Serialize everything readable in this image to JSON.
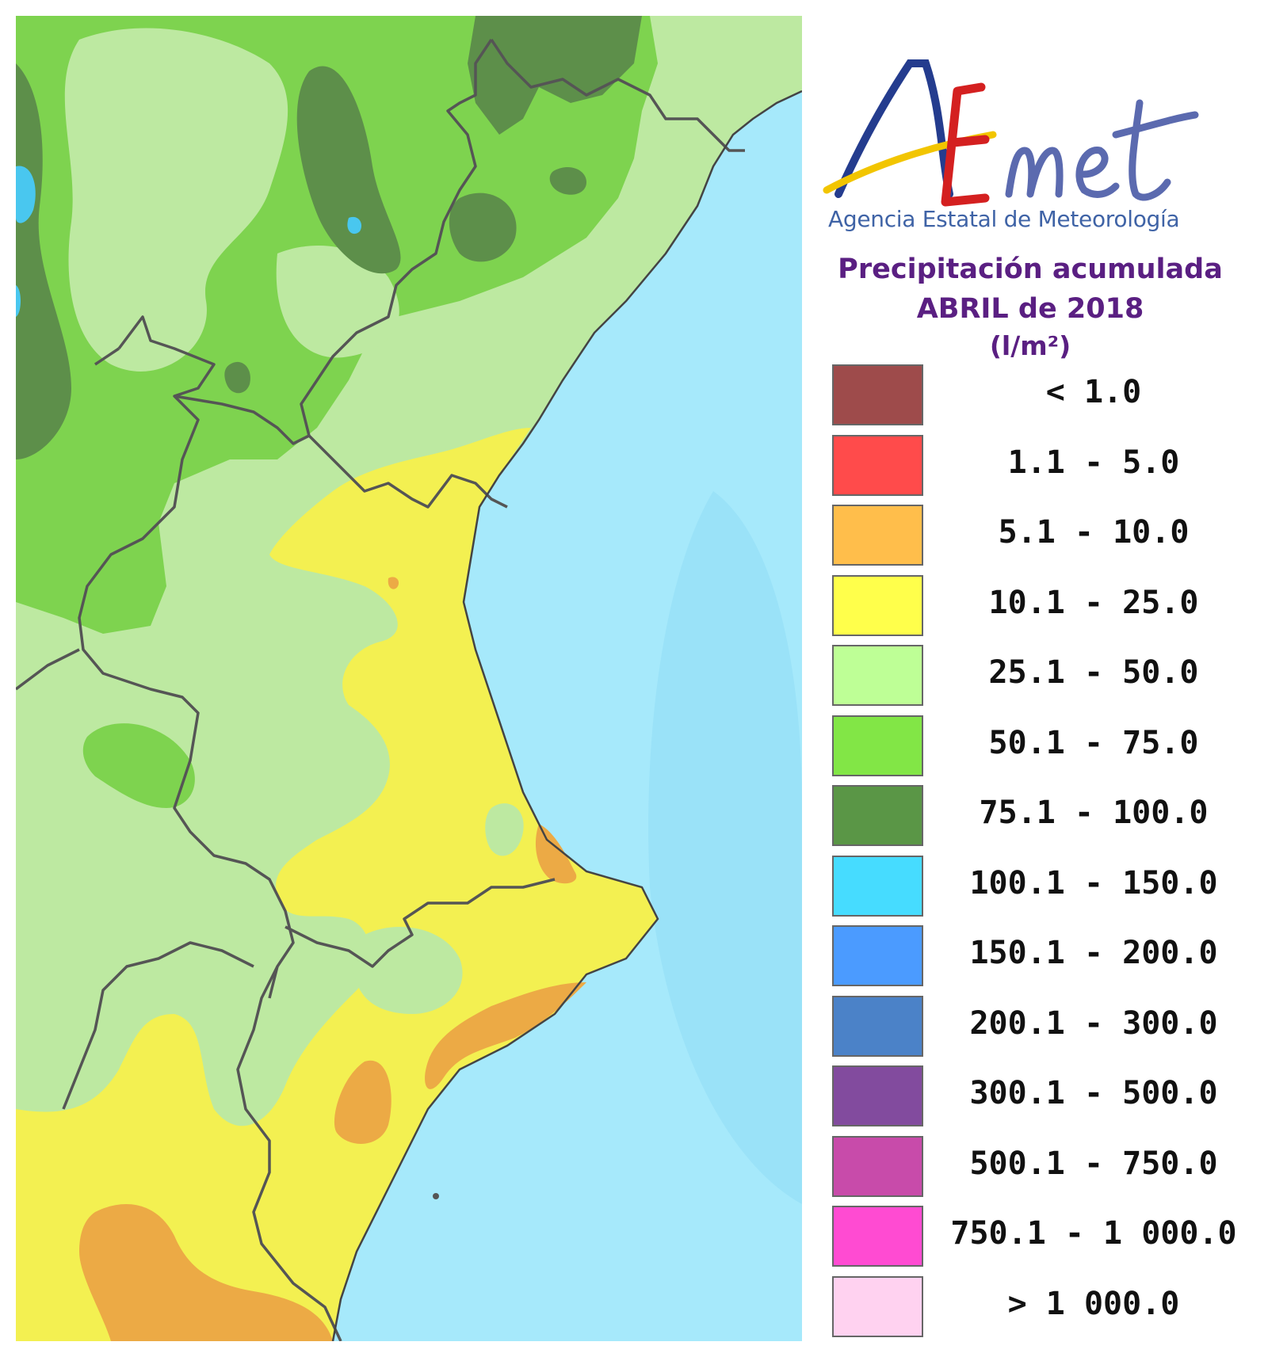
{
  "logo": {
    "wordmark": "AEmet",
    "subtitle": "Agencia Estatal de Meteorología"
  },
  "title": {
    "line1": "Precipitación acumulada",
    "line2": "ABRIL de 2018",
    "units": "(l/m²)"
  },
  "legend": [
    {
      "label": "< 1.0",
      "color": "#9e4b4b"
    },
    {
      "label": "1.1 - 5.0",
      "color": "#ff4b4b"
    },
    {
      "label": "5.1 - 10.0",
      "color": "#ffbe4b"
    },
    {
      "label": "10.1 - 25.0",
      "color": "#ffff4b"
    },
    {
      "label": "25.1 - 50.0",
      "color": "#beff96"
    },
    {
      "label": "50.1 - 75.0",
      "color": "#82e646"
    },
    {
      "label": "75.1 - 100.0",
      "color": "#5a9646"
    },
    {
      "label": "100.1 - 150.0",
      "color": "#46dcff"
    },
    {
      "label": "150.1 - 200.0",
      "color": "#4b9bff"
    },
    {
      "label": "200.1 - 300.0",
      "color": "#4b82c8"
    },
    {
      "label": "300.1 - 500.0",
      "color": "#824b9e"
    },
    {
      "label": "500.1 - 750.0",
      "color": "#c84baa"
    },
    {
      "label": "750.1 - 1 000.0",
      "color": "#ff4bd2"
    },
    {
      "label": "> 1 000.0",
      "color": "#ffd2f0"
    }
  ],
  "map_colors": {
    "sea": "#a6e9fb",
    "sea_deep": "#8fdcf6",
    "range_10_25": "#f3f051",
    "range_25_50": "#bde9a1",
    "range_50_75": "#7ed34f",
    "range_75_100": "#5d8f4a",
    "range_5_10": "#ecaa45",
    "range_100_150": "#49c7ef",
    "border": "#555555"
  }
}
